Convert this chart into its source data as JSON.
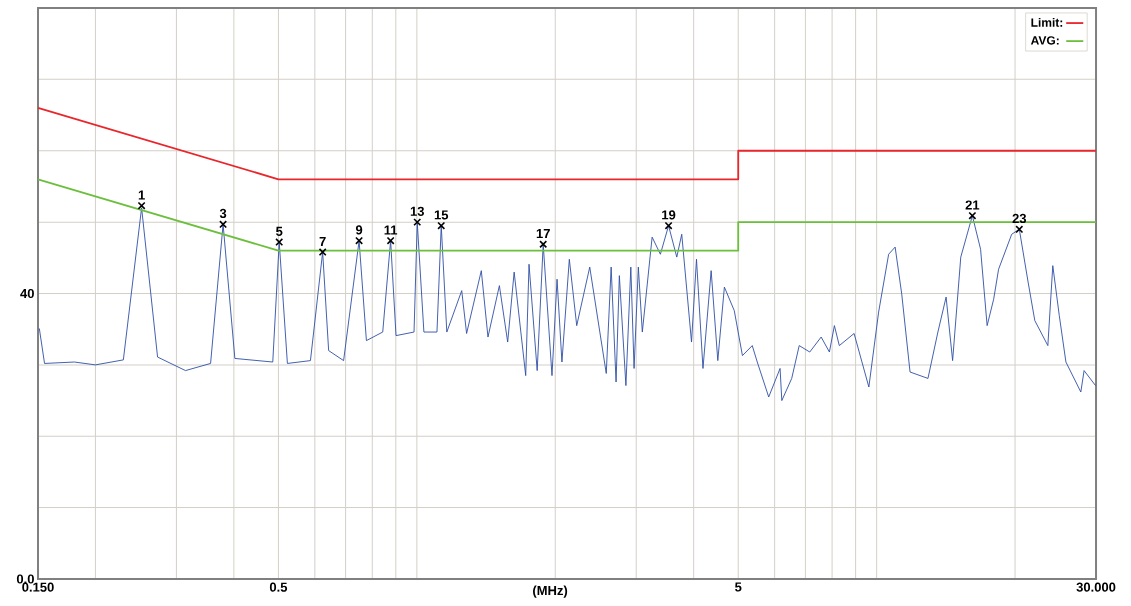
{
  "chart_data": {
    "type": "line",
    "xlabel": "(MHz)",
    "log": "x",
    "grid": true,
    "legend": "top right",
    "xlim": [
      0.15,
      30
    ],
    "ylim": [
      0,
      80
    ],
    "xticks": [
      {
        "value": 0.15,
        "label": "0.150"
      },
      {
        "value": 0.2,
        "label": null
      },
      {
        "value": 0.3,
        "label": null
      },
      {
        "value": 0.4,
        "label": null
      },
      0.5,
      {
        "value": 0.6,
        "label": null
      },
      {
        "value": 0.7,
        "label": null
      },
      {
        "value": 0.8,
        "label": null
      },
      {
        "value": 0.9,
        "label": null
      },
      {
        "value": 1,
        "label": null
      },
      {
        "value": 2,
        "label": null
      },
      {
        "value": 3,
        "label": null
      },
      {
        "value": 4,
        "label": null
      },
      5,
      {
        "value": 6,
        "label": null
      },
      {
        "value": 7,
        "label": null
      },
      {
        "value": 8,
        "label": null
      },
      {
        "value": 9,
        "label": null
      },
      {
        "value": 10,
        "label": null
      },
      {
        "value": 20,
        "label": null
      },
      {
        "value": 30,
        "label": "30.000"
      }
    ],
    "yticks": [
      {
        "value": 0,
        "label": "0.0"
      },
      {
        "value": 10,
        "label": null
      },
      {
        "value": 20,
        "label": null
      },
      {
        "value": 30,
        "label": null
      },
      40,
      {
        "value": 50,
        "label": null
      },
      {
        "value": 60,
        "label": null
      },
      {
        "value": 70,
        "label": null
      }
    ],
    "series": [
      {
        "color": "#2f4fa6",
        "x": [
          0.151,
          0.155,
          0.18,
          0.2,
          0.23,
          0.252,
          0.273,
          0.314,
          0.356,
          0.379,
          0.402,
          0.486,
          0.502,
          0.523,
          0.587,
          0.624,
          0.643,
          0.693,
          0.749,
          0.777,
          0.843,
          0.877,
          0.901,
          0.986,
          1.002,
          1.036,
          1.106,
          1.13,
          1.162,
          1.252,
          1.283,
          1.381,
          1.428,
          1.512,
          1.576,
          1.628,
          1.725,
          1.754,
          1.827,
          1.883,
          1.968,
          2.018,
          2.068,
          2.146,
          2.227,
          2.377,
          2.582,
          2.646,
          2.712,
          2.757,
          2.849,
          2.92,
          2.968,
          3.032,
          3.093,
          3.249,
          3.386,
          3.528,
          3.676,
          3.768,
          3.958,
          4.057,
          4.191,
          4.366,
          4.514,
          4.665,
          4.902,
          5.106,
          5.364,
          5.5,
          5.825,
          6.166,
          6.22,
          6.536,
          6.786,
          7.154,
          7.575,
          7.894,
          8.093,
          8.295,
          8.932,
          9.617,
          10.1,
          10.62,
          10.97,
          11.34,
          11.82,
          12.93,
          13.59,
          14.16,
          14.63,
          15.24,
          16.15,
          16.83,
          17.39,
          17.97,
          18.42,
          19.67,
          20.43,
          21.35,
          22.08,
          23.57,
          24.16,
          24.96,
          25.8,
          27.8,
          28.26,
          29.93
        ],
        "values": [
          35.1,
          30.2,
          30.4,
          30.0,
          30.7,
          52.0,
          31.1,
          29.2,
          30.2,
          49.7,
          30.9,
          30.4,
          47.2,
          30.2,
          30.6,
          45.8,
          32.0,
          30.6,
          47.4,
          33.4,
          34.6,
          47.4,
          34.1,
          34.6,
          50.0,
          34.6,
          34.6,
          49.5,
          34.6,
          40.4,
          34.4,
          43.2,
          33.9,
          41.1,
          33.2,
          43.0,
          28.5,
          44.1,
          29.2,
          46.9,
          28.5,
          42.0,
          30.4,
          44.8,
          35.5,
          43.7,
          28.8,
          43.7,
          27.6,
          42.5,
          27.1,
          43.7,
          29.5,
          43.7,
          34.6,
          47.9,
          45.5,
          49.5,
          45.1,
          48.3,
          33.2,
          44.8,
          29.5,
          43.2,
          30.6,
          40.9,
          37.6,
          31.3,
          32.7,
          30.4,
          25.5,
          29.5,
          25.0,
          28.1,
          32.7,
          31.8,
          33.9,
          31.8,
          35.5,
          32.7,
          34.4,
          26.9,
          37.4,
          45.5,
          46.5,
          39.9,
          29.0,
          28.1,
          34.6,
          39.5,
          30.6,
          45.1,
          50.9,
          46.2,
          35.5,
          39.2,
          43.4,
          48.3,
          49.0,
          41.6,
          36.2,
          32.7,
          43.9,
          36.9,
          30.4,
          26.2,
          29.2,
          27.1
        ]
      },
      {
        "name": "Limit:",
        "color": "#e8262b",
        "x": [
          0.15,
          0.5,
          5,
          5,
          30
        ],
        "values": [
          66,
          56,
          56,
          60,
          60
        ]
      },
      {
        "name": "AVG:",
        "color": "#6cbf3c",
        "x": [
          0.15,
          0.5,
          5,
          5,
          30
        ],
        "values": [
          56,
          46,
          46,
          50,
          50
        ]
      },
      {
        "type": "scatter",
        "marker": "cross",
        "color": "#000000",
        "x": [
          0.252,
          0.379,
          0.502,
          0.624,
          0.749,
          0.877,
          1.002,
          1.13,
          1.883,
          3.528,
          16.15,
          20.43
        ],
        "values": [
          52.3,
          49.7,
          47.2,
          45.8,
          47.4,
          47.4,
          50.0,
          49.5,
          46.9,
          49.5,
          50.9,
          49.0
        ]
      }
    ],
    "annotations": [
      {
        "text": "1",
        "x": 0.252,
        "y": 52.3
      },
      {
        "text": "3",
        "x": 0.379,
        "y": 49.7
      },
      {
        "text": "5",
        "x": 0.502,
        "y": 47.2
      },
      {
        "text": "7",
        "x": 0.624,
        "y": 45.8
      },
      {
        "text": "9",
        "x": 0.749,
        "y": 47.4
      },
      {
        "text": "11",
        "x": 0.877,
        "y": 47.4
      },
      {
        "text": "13",
        "x": 1.002,
        "y": 50.0
      },
      {
        "text": "15",
        "x": 1.13,
        "y": 49.5
      },
      {
        "text": "17",
        "x": 1.883,
        "y": 46.9
      },
      {
        "text": "19",
        "x": 3.528,
        "y": 49.5
      },
      {
        "text": "21",
        "x": 16.15,
        "y": 50.9
      },
      {
        "text": "23",
        "x": 20.43,
        "y": 49.0
      }
    ]
  }
}
